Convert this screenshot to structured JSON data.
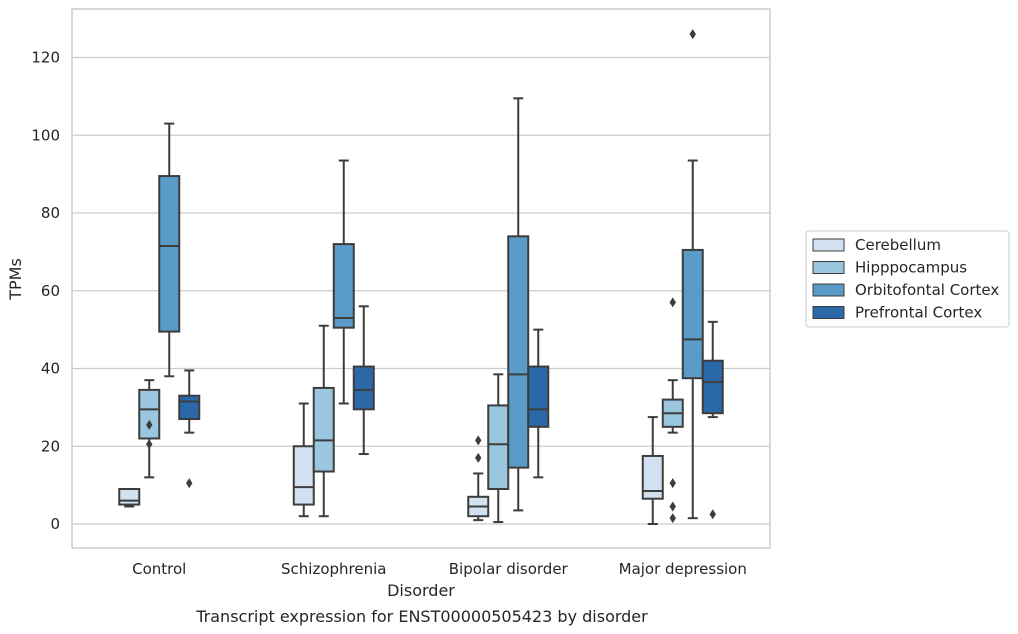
{
  "chart_data": {
    "type": "box",
    "xlabel": "Disorder",
    "ylabel": "TPMs",
    "caption": "Transcript expression for ENST00000505423 by disorder",
    "ylim": [
      -6,
      133
    ],
    "yticks": [
      0,
      20,
      40,
      60,
      80,
      100,
      120
    ],
    "grid": "horizontal",
    "legend_position": "right",
    "categories": [
      "Control",
      "Schizophrenia",
      "Bipolar disorder",
      "Major depression"
    ],
    "series": [
      {
        "name": "Cerebellum",
        "color": "#d2e1f1",
        "boxes": [
          {
            "whisker_low": 4.5,
            "q1": 5.0,
            "median": 6.0,
            "q3": 9.0,
            "whisker_high": 9.0,
            "outliers": []
          },
          {
            "whisker_low": 2.0,
            "q1": 5.0,
            "median": 9.5,
            "q3": 20.0,
            "whisker_high": 31.0,
            "outliers": []
          },
          {
            "whisker_low": 1.0,
            "q1": 2.0,
            "median": 4.5,
            "q3": 7.0,
            "whisker_high": 13.0,
            "outliers": [
              17.0,
              21.5
            ]
          },
          {
            "whisker_low": 0.0,
            "q1": 6.5,
            "median": 8.5,
            "q3": 17.5,
            "whisker_high": 27.5,
            "outliers": []
          }
        ]
      },
      {
        "name": "Hipppocampus",
        "color": "#9ac6e0",
        "boxes": [
          {
            "whisker_low": 12.0,
            "q1": 22.0,
            "median": 29.5,
            "q3": 34.5,
            "whisker_high": 37.0,
            "outliers": [
              20.5,
              25.5
            ]
          },
          {
            "whisker_low": 2.0,
            "q1": 13.5,
            "median": 21.5,
            "q3": 35.0,
            "whisker_high": 51.0,
            "outliers": []
          },
          {
            "whisker_low": 0.5,
            "q1": 9.0,
            "median": 20.5,
            "q3": 30.5,
            "whisker_high": 38.5,
            "outliers": []
          },
          {
            "whisker_low": 23.5,
            "q1": 25.0,
            "median": 28.5,
            "q3": 32.0,
            "whisker_high": 37.0,
            "outliers": [
              1.5,
              4.5,
              10.5,
              57.0
            ]
          }
        ]
      },
      {
        "name": "Orbitofontal Cortex",
        "color": "#5a9bc7",
        "boxes": [
          {
            "whisker_low": 38.0,
            "q1": 49.5,
            "median": 71.5,
            "q3": 89.5,
            "whisker_high": 103.0,
            "outliers": []
          },
          {
            "whisker_low": 31.0,
            "q1": 50.5,
            "median": 53.0,
            "q3": 72.0,
            "whisker_high": 93.5,
            "outliers": []
          },
          {
            "whisker_low": 3.5,
            "q1": 14.5,
            "median": 38.5,
            "q3": 74.0,
            "whisker_high": 109.5,
            "outliers": []
          },
          {
            "whisker_low": 1.5,
            "q1": 37.5,
            "median": 47.5,
            "q3": 70.5,
            "whisker_high": 93.5,
            "outliers": [
              126.0
            ]
          }
        ]
      },
      {
        "name": "Prefrontal Cortex",
        "color": "#2a68a8",
        "boxes": [
          {
            "whisker_low": 23.5,
            "q1": 27.0,
            "median": 31.5,
            "q3": 33.0,
            "whisker_high": 39.5,
            "outliers": [
              10.5
            ]
          },
          {
            "whisker_low": 18.0,
            "q1": 29.5,
            "median": 34.5,
            "q3": 40.5,
            "whisker_high": 56.0,
            "outliers": []
          },
          {
            "whisker_low": 12.0,
            "q1": 25.0,
            "median": 29.5,
            "q3": 40.5,
            "whisker_high": 50.0,
            "outliers": []
          },
          {
            "whisker_low": 27.5,
            "q1": 28.5,
            "median": 36.5,
            "q3": 42.0,
            "whisker_high": 52.0,
            "outliers": [
              2.5
            ]
          }
        ]
      }
    ]
  }
}
